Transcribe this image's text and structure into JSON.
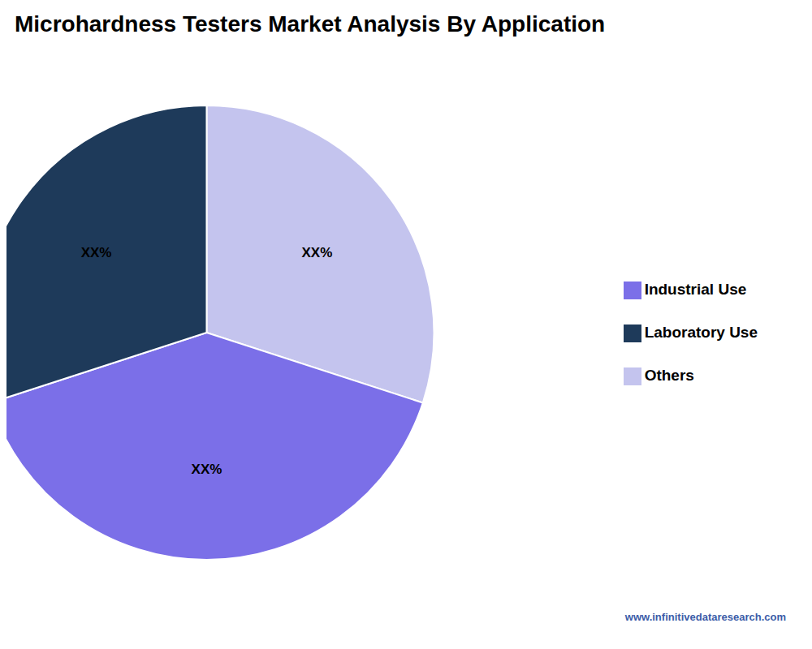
{
  "chart_data": {
    "type": "pie",
    "title": "Microhardness Testers  Market Analysis By Application",
    "categories": [
      "Others",
      "Industrial Use",
      "Laboratory Use"
    ],
    "values": [
      30,
      40,
      30
    ],
    "value_labels": [
      "XX%",
      "XX%",
      "XX%"
    ],
    "colors": [
      "#C4C4EE",
      "#7B6FE8",
      "#1E3A5A"
    ],
    "legend": "right",
    "data_labels": true,
    "annotations": [
      "www.infinitivedataresearch.com"
    ]
  }
}
